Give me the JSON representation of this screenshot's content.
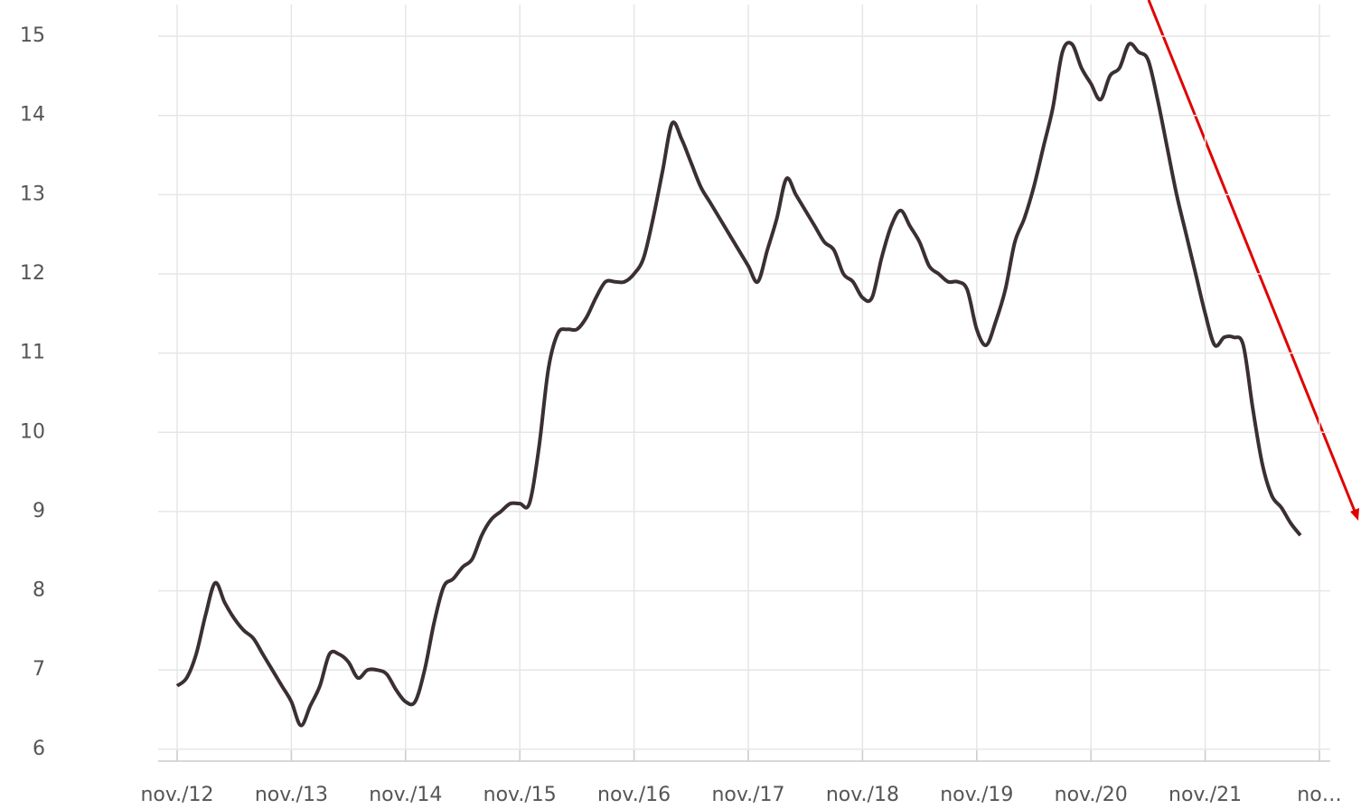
{
  "chart_data": {
    "type": "line",
    "categories": [
      "nov./12",
      null,
      null,
      null,
      null,
      null,
      null,
      null,
      null,
      null,
      null,
      null,
      "nov./13",
      null,
      null,
      null,
      null,
      null,
      null,
      null,
      null,
      null,
      null,
      null,
      "nov./14",
      null,
      null,
      null,
      null,
      null,
      null,
      null,
      null,
      null,
      null,
      null,
      "nov./15",
      null,
      null,
      null,
      null,
      null,
      null,
      null,
      null,
      null,
      null,
      null,
      "nov./16",
      null,
      null,
      null,
      null,
      null,
      null,
      null,
      null,
      null,
      null,
      null,
      "nov./17",
      null,
      null,
      null,
      null,
      null,
      null,
      null,
      null,
      null,
      null,
      null,
      "nov./18",
      null,
      null,
      null,
      null,
      null,
      null,
      null,
      null,
      null,
      null,
      null,
      "nov./19",
      null,
      null,
      null,
      null,
      null,
      null,
      null,
      null,
      null,
      null,
      null,
      "nov./20",
      null,
      null,
      null,
      null,
      null,
      null,
      null,
      null,
      null,
      null,
      null,
      "nov./21",
      null,
      null,
      null,
      null,
      null,
      null,
      null,
      null,
      null,
      null,
      null,
      "no…"
    ],
    "series": [
      {
        "color": "#3a2f33",
        "values": [
          6.8,
          6.9,
          7.2,
          7.7,
          8.1,
          7.85,
          7.65,
          7.5,
          7.4,
          7.2,
          7.0,
          6.8,
          6.6,
          6.3,
          6.55,
          6.8,
          7.2,
          7.2,
          7.1,
          6.9,
          7.0,
          7.0,
          6.95,
          6.75,
          6.6,
          6.6,
          7.0,
          7.6,
          8.05,
          8.15,
          8.3,
          8.4,
          8.7,
          8.9,
          9.0,
          9.1,
          9.1,
          9.1,
          9.8,
          10.8,
          11.25,
          11.3,
          11.3,
          11.45,
          11.7,
          11.9,
          11.9,
          11.9,
          12.0,
          12.2,
          12.7,
          13.3,
          13.9,
          13.7,
          13.4,
          13.1,
          12.9,
          12.7,
          12.5,
          12.3,
          12.1,
          11.9,
          12.3,
          12.7,
          13.2,
          13.0,
          12.8,
          12.6,
          12.4,
          12.3,
          12.0,
          11.9,
          11.7,
          11.7,
          12.2,
          12.6,
          12.8,
          12.6,
          12.4,
          12.1,
          12.0,
          11.9,
          11.9,
          11.8,
          11.3,
          11.1,
          11.4,
          11.8,
          12.4,
          12.7,
          13.1,
          13.6,
          14.1,
          14.8,
          14.9,
          14.6,
          14.4,
          14.2,
          14.5,
          14.6,
          14.9,
          14.8,
          14.7,
          14.2,
          13.6,
          13.0,
          12.5,
          12.0,
          11.5,
          11.1,
          11.2,
          11.2,
          11.1,
          10.3,
          9.6,
          9.2,
          9.05,
          8.85,
          8.7,
          null,
          null
        ]
      }
    ],
    "ylim": [
      5.85,
      15.4
    ],
    "yticks": [
      6,
      7,
      8,
      9,
      10,
      11,
      12,
      13,
      14,
      15
    ],
    "grid": true
  }
}
